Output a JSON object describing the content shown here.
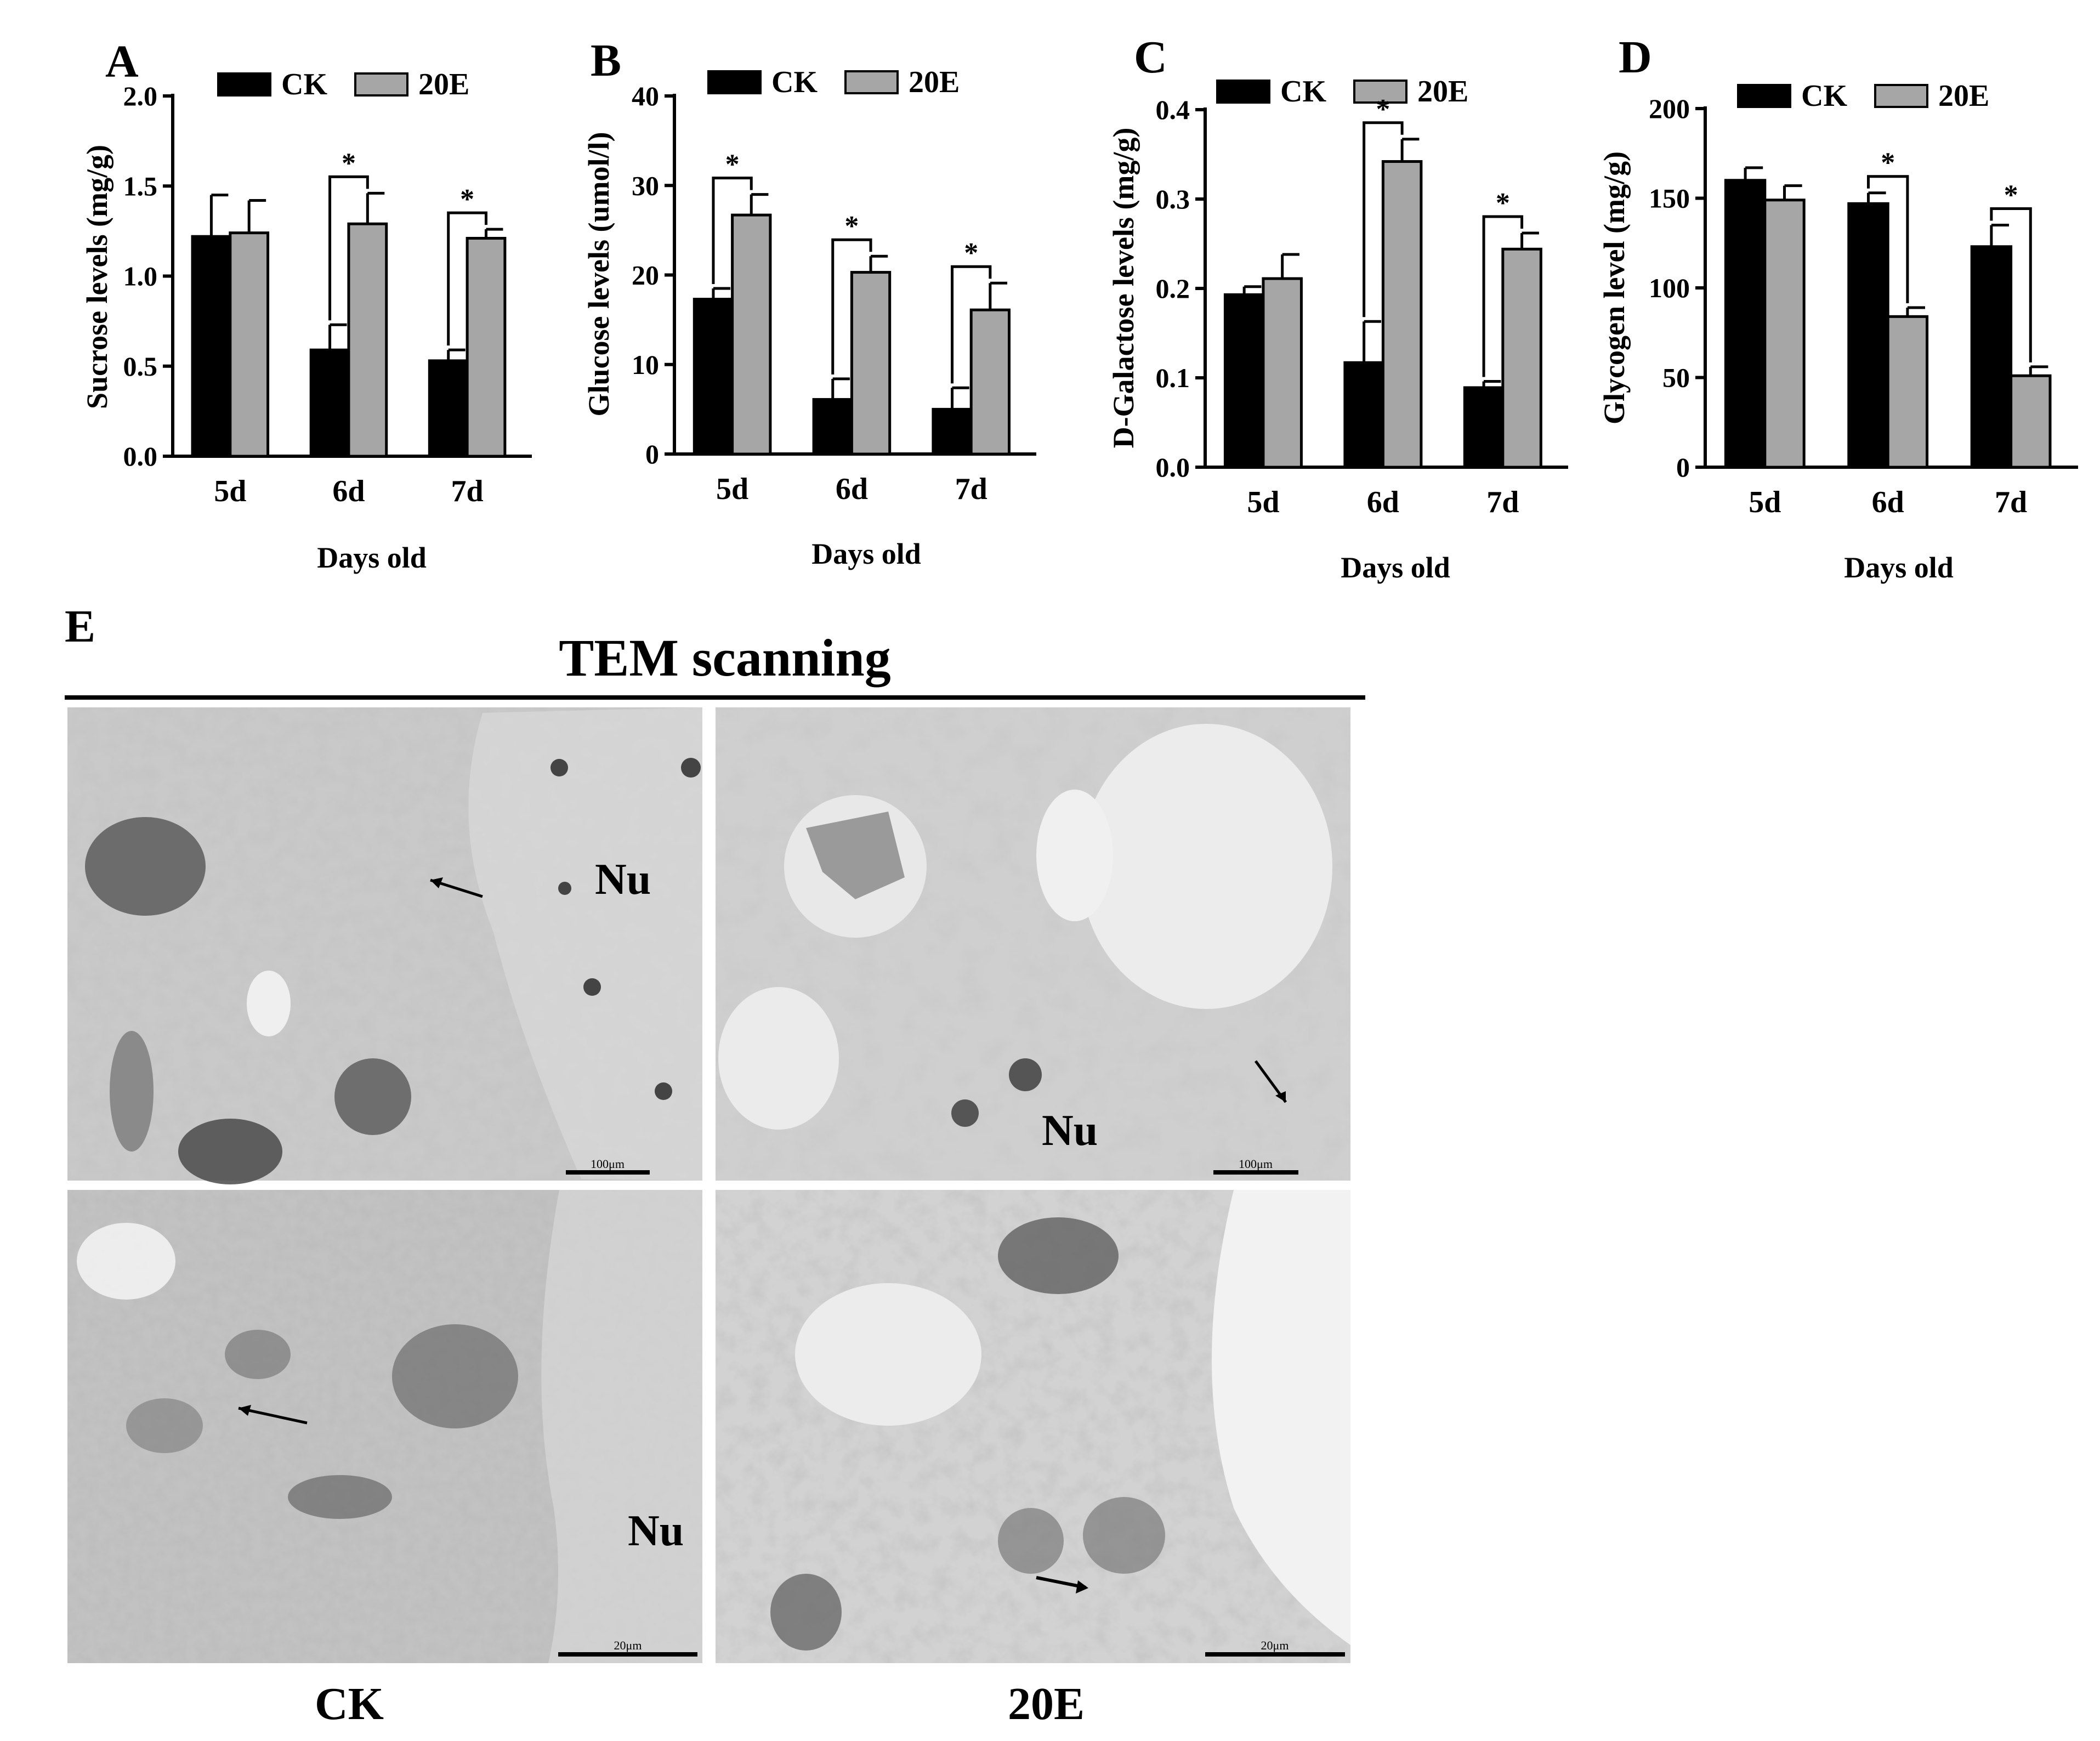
{
  "colors": {
    "ck": "#000000",
    "treat": "#a6a6a6"
  },
  "chart_data": [
    {
      "panel": "A",
      "type": "bar",
      "categories": [
        "5d",
        "6d",
        "7d"
      ],
      "series": [
        {
          "name": "CK",
          "values": [
            1.22,
            0.59,
            0.53
          ],
          "errors": [
            0.23,
            0.14,
            0.06
          ]
        },
        {
          "name": "20E",
          "values": [
            1.24,
            1.29,
            1.21
          ],
          "errors": [
            0.18,
            0.17,
            0.05
          ]
        }
      ],
      "significance": [
        "",
        "*",
        "*"
      ],
      "xlabel": "Days old",
      "ylabel": "Sucrose levels (mg/g)",
      "ylim": [
        0,
        2.0
      ],
      "yticks": [
        "0.0",
        "0.5",
        "1.0",
        "1.5",
        "2.0"
      ],
      "ytick_values": [
        0,
        0.5,
        1.0,
        1.5,
        2.0
      ],
      "legend": "top"
    },
    {
      "panel": "B",
      "type": "bar",
      "categories": [
        "5d",
        "6d",
        "7d"
      ],
      "series": [
        {
          "name": "CK",
          "values": [
            17.3,
            6.1,
            5.0
          ],
          "errors": [
            1.2,
            2.3,
            2.4
          ]
        },
        {
          "name": "20E",
          "values": [
            26.7,
            20.3,
            16.1
          ],
          "errors": [
            2.3,
            1.8,
            3.0
          ]
        }
      ],
      "significance": [
        "*",
        "*",
        "*"
      ],
      "xlabel": "Days old",
      "ylabel": "Glucose levels (umol/l)",
      "ylim": [
        0,
        40
      ],
      "yticks": [
        "0",
        "10",
        "20",
        "30",
        "40"
      ],
      "ytick_values": [
        0,
        10,
        20,
        30,
        40
      ],
      "legend": "top"
    },
    {
      "panel": "C",
      "type": "bar",
      "categories": [
        "5d",
        "6d",
        "7d"
      ],
      "series": [
        {
          "name": "CK",
          "values": [
            0.193,
            0.117,
            0.089
          ],
          "errors": [
            0.009,
            0.046,
            0.007
          ]
        },
        {
          "name": "20E",
          "values": [
            0.211,
            0.342,
            0.244
          ],
          "errors": [
            0.027,
            0.025,
            0.018
          ]
        }
      ],
      "significance": [
        "",
        "*",
        "*"
      ],
      "xlabel": "Days old",
      "ylabel": "D-Galactose levels (mg/g)",
      "ylim": [
        0,
        0.4
      ],
      "yticks": [
        "0.0",
        "0.1",
        "0.2",
        "0.3",
        "0.4"
      ],
      "ytick_values": [
        0,
        0.1,
        0.2,
        0.3,
        0.4
      ],
      "legend": "top"
    },
    {
      "panel": "D",
      "type": "bar",
      "categories": [
        "5d",
        "6d",
        "7d"
      ],
      "series": [
        {
          "name": "CK",
          "values": [
            160,
            147,
            123
          ],
          "errors": [
            7,
            6,
            12
          ]
        },
        {
          "name": "20E",
          "values": [
            149,
            84,
            51
          ],
          "errors": [
            8,
            5,
            5
          ]
        }
      ],
      "significance": [
        "",
        "*",
        "*"
      ],
      "xlabel": "Days old",
      "ylabel": "Glycogen level (mg/g)",
      "ylim": [
        0,
        200
      ],
      "yticks": [
        "0",
        "50",
        "100",
        "150",
        "200"
      ],
      "ytick_values": [
        0,
        50,
        100,
        150,
        200
      ],
      "legend": "top"
    }
  ],
  "panel_e": {
    "letter": "E",
    "title": "TEM scanning",
    "nucleus_label": "Nu",
    "scale_top": "100μm",
    "scale_bottom": "20μm",
    "column_labels": [
      "CK",
      "20E"
    ]
  }
}
